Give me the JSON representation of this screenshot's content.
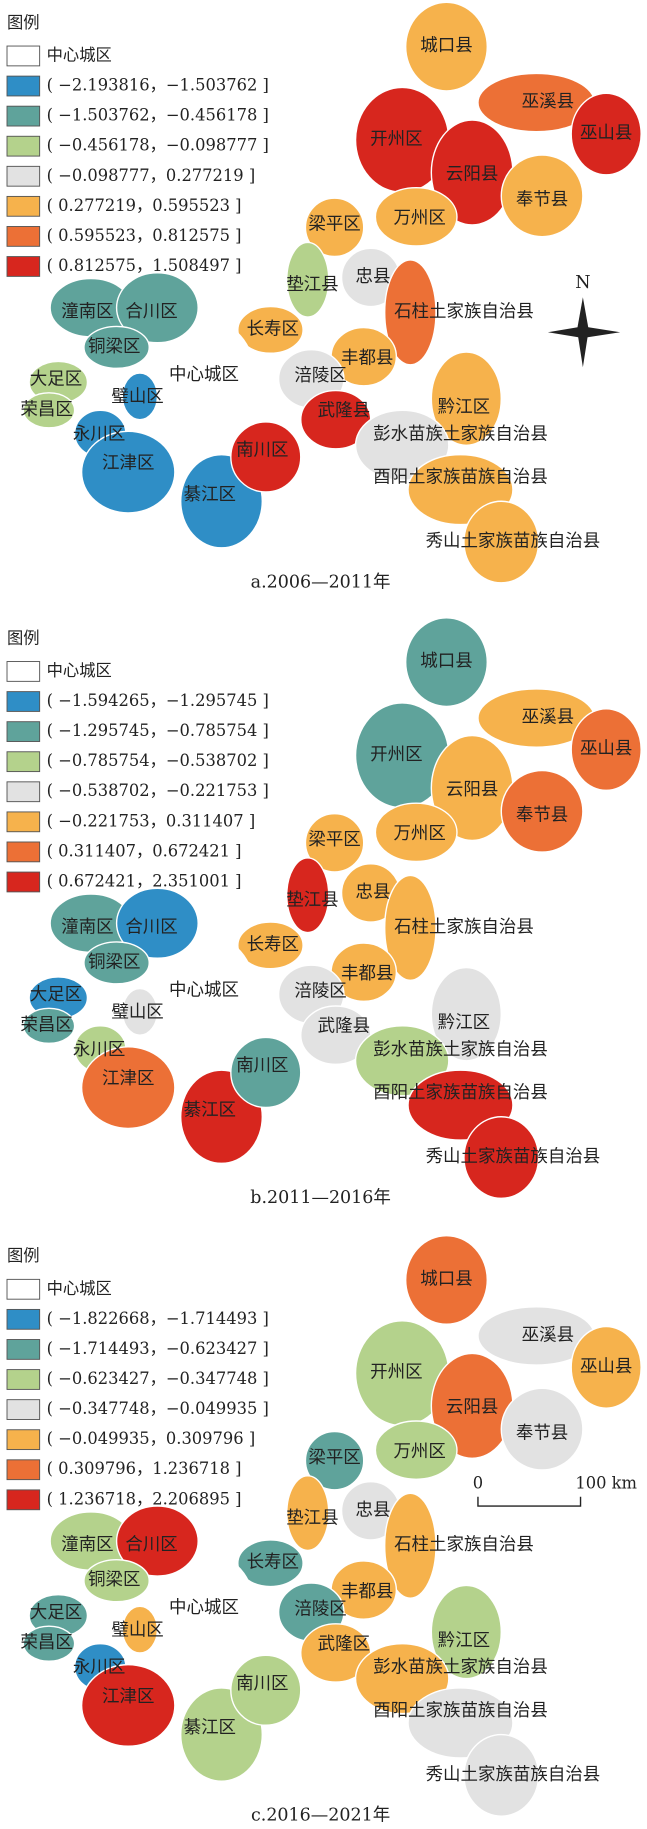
{
  "panels": [
    {
      "legend": {
        "title": "图例",
        "items": [
          {
            "label": "中心城区",
            "color": "#ffffff"
          },
          {
            "label": "( −2.193816，−1.503762 ]",
            "color": "#2f8ec6"
          },
          {
            "label": "( −1.503762，−0.456178 ]",
            "color": "#5fa39b"
          },
          {
            "label": "( −0.456178，−0.098777 ]",
            "color": "#b4d28c"
          },
          {
            "label": "( −0.098777，0.277219 ]",
            "color": "#e2e2e2"
          },
          {
            "label": "( 0.277219，0.595523 ]",
            "color": "#f6b24c"
          },
          {
            "label": "( 0.595523，0.812575 ]",
            "color": "#ec7036"
          },
          {
            "label": "( 0.812575，1.508497 ]",
            "color": "#d7261e"
          }
        ]
      },
      "regions": [
        {
          "name": "城口县",
          "class": 5
        },
        {
          "name": "巫溪县",
          "class": 6
        },
        {
          "name": "巫山县",
          "class": 7
        },
        {
          "name": "开州区",
          "class": 7
        },
        {
          "name": "云阳县",
          "class": 7
        },
        {
          "name": "奉节县",
          "class": 5
        },
        {
          "name": "梁平区",
          "class": 5
        },
        {
          "name": "万州区",
          "class": 5
        },
        {
          "name": "垫江县",
          "class": 3
        },
        {
          "name": "忠县",
          "class": 4
        },
        {
          "name": "石柱土家族自治县",
          "class": 6
        },
        {
          "name": "长寿区",
          "class": 5
        },
        {
          "name": "丰都县",
          "class": 5
        },
        {
          "name": "涪陵区",
          "class": 4
        },
        {
          "name": "中心城区",
          "class": 0
        },
        {
          "name": "潼南区",
          "class": 2
        },
        {
          "name": "合川区",
          "class": 2
        },
        {
          "name": "铜梁区",
          "class": 2
        },
        {
          "name": "大足区",
          "class": 3
        },
        {
          "name": "璧山区",
          "class": 1
        },
        {
          "name": "荣昌区",
          "class": 3
        },
        {
          "name": "永川区",
          "class": 1
        },
        {
          "name": "江津区",
          "class": 1
        },
        {
          "name": "綦江区",
          "class": 1
        },
        {
          "name": "南川区",
          "class": 7
        },
        {
          "name": "武隆县",
          "class": 7
        },
        {
          "name": "黔江区",
          "class": 5
        },
        {
          "name": "彭水苗族土家族自治县",
          "class": 4
        },
        {
          "name": "酉阳土家族苗族自治县",
          "class": 5
        },
        {
          "name": "秀山土家族苗族自治县",
          "class": 5
        }
      ],
      "north": "N",
      "caption": "a.2006—2011年"
    },
    {
      "legend": {
        "title": "图例",
        "items": [
          {
            "label": "中心城区",
            "color": "#ffffff"
          },
          {
            "label": "( −1.594265，−1.295745 ]",
            "color": "#2f8ec6"
          },
          {
            "label": "( −1.295745，−0.785754 ]",
            "color": "#5fa39b"
          },
          {
            "label": "( −0.785754，−0.538702 ]",
            "color": "#b4d28c"
          },
          {
            "label": "( −0.538702，−0.221753 ]",
            "color": "#e2e2e2"
          },
          {
            "label": "( −0.221753，0.311407 ]",
            "color": "#f6b24c"
          },
          {
            "label": "( 0.311407，0.672421 ]",
            "color": "#ec7036"
          },
          {
            "label": "( 0.672421，2.351001 ]",
            "color": "#d7261e"
          }
        ]
      },
      "regions": [
        {
          "name": "城口县",
          "class": 2
        },
        {
          "name": "巫溪县",
          "class": 5
        },
        {
          "name": "巫山县",
          "class": 6
        },
        {
          "name": "开州区",
          "class": 2
        },
        {
          "name": "云阳县",
          "class": 5
        },
        {
          "name": "奉节县",
          "class": 6
        },
        {
          "name": "梁平区",
          "class": 5
        },
        {
          "name": "万州区",
          "class": 5
        },
        {
          "name": "垫江县",
          "class": 7
        },
        {
          "name": "忠县",
          "class": 5
        },
        {
          "name": "石柱土家族自治县",
          "class": 5
        },
        {
          "name": "长寿区",
          "class": 5
        },
        {
          "name": "丰都县",
          "class": 5
        },
        {
          "name": "涪陵区",
          "class": 4
        },
        {
          "name": "中心城区",
          "class": 0
        },
        {
          "name": "潼南区",
          "class": 2
        },
        {
          "name": "合川区",
          "class": 1
        },
        {
          "name": "铜梁区",
          "class": 2
        },
        {
          "name": "大足区",
          "class": 1
        },
        {
          "name": "璧山区",
          "class": 4
        },
        {
          "name": "荣昌区",
          "class": 2
        },
        {
          "name": "永川区",
          "class": 3
        },
        {
          "name": "江津区",
          "class": 6
        },
        {
          "name": "綦江区",
          "class": 7
        },
        {
          "name": "南川区",
          "class": 2
        },
        {
          "name": "武隆县",
          "class": 4
        },
        {
          "name": "黔江区",
          "class": 4
        },
        {
          "name": "彭水苗族土家族自治县",
          "class": 3
        },
        {
          "name": "酉阳土家族苗族自治县",
          "class": 7
        },
        {
          "name": "秀山土家族苗族自治县",
          "class": 7
        }
      ],
      "caption": "b.2011—2016年"
    },
    {
      "legend": {
        "title": "图例",
        "items": [
          {
            "label": "中心城区",
            "color": "#ffffff"
          },
          {
            "label": "( −1.822668，−1.714493 ]",
            "color": "#2f8ec6"
          },
          {
            "label": "( −1.714493，−0.623427 ]",
            "color": "#5fa39b"
          },
          {
            "label": "( −0.623427，−0.347748 ]",
            "color": "#b4d28c"
          },
          {
            "label": "( −0.347748，−0.049935 ]",
            "color": "#e2e2e2"
          },
          {
            "label": "( −0.049935，0.309796 ]",
            "color": "#f6b24c"
          },
          {
            "label": "( 0.309796，1.236718 ]",
            "color": "#ec7036"
          },
          {
            "label": "( 1.236718，2.206895 ]",
            "color": "#d7261e"
          }
        ]
      },
      "regions": [
        {
          "name": "城口县",
          "class": 6
        },
        {
          "name": "巫溪县",
          "class": 4
        },
        {
          "name": "巫山县",
          "class": 5
        },
        {
          "name": "开州区",
          "class": 3
        },
        {
          "name": "云阳县",
          "class": 6
        },
        {
          "name": "奉节县",
          "class": 4
        },
        {
          "name": "梁平区",
          "class": 2
        },
        {
          "name": "万州区",
          "class": 3
        },
        {
          "name": "垫江县",
          "class": 5
        },
        {
          "name": "忠县",
          "class": 4
        },
        {
          "name": "石柱土家族自治县",
          "class": 5
        },
        {
          "name": "长寿区",
          "class": 2
        },
        {
          "name": "丰都县",
          "class": 5
        },
        {
          "name": "涪陵区",
          "class": 2
        },
        {
          "name": "中心城区",
          "class": 0
        },
        {
          "name": "潼南区",
          "class": 3
        },
        {
          "name": "合川区",
          "class": 7
        },
        {
          "name": "铜梁区",
          "class": 3
        },
        {
          "name": "大足区",
          "class": 2
        },
        {
          "name": "璧山区",
          "class": 5
        },
        {
          "name": "荣昌区",
          "class": 2
        },
        {
          "name": "永川区",
          "class": 1
        },
        {
          "name": "江津区",
          "class": 7
        },
        {
          "name": "綦江区",
          "class": 3
        },
        {
          "name": "南川区",
          "class": 3
        },
        {
          "name": "武隆区",
          "class": 5
        },
        {
          "name": "黔江区",
          "class": 3
        },
        {
          "name": "彭水苗族土家族自治县",
          "class": 5
        },
        {
          "name": "酉阳土家族苗族自治县",
          "class": 4
        },
        {
          "name": "秀山土家族苗族自治县",
          "class": 4
        }
      ],
      "scale_bar": [
        "0",
        "100 km"
      ],
      "caption": "c.2016—2021年"
    }
  ]
}
